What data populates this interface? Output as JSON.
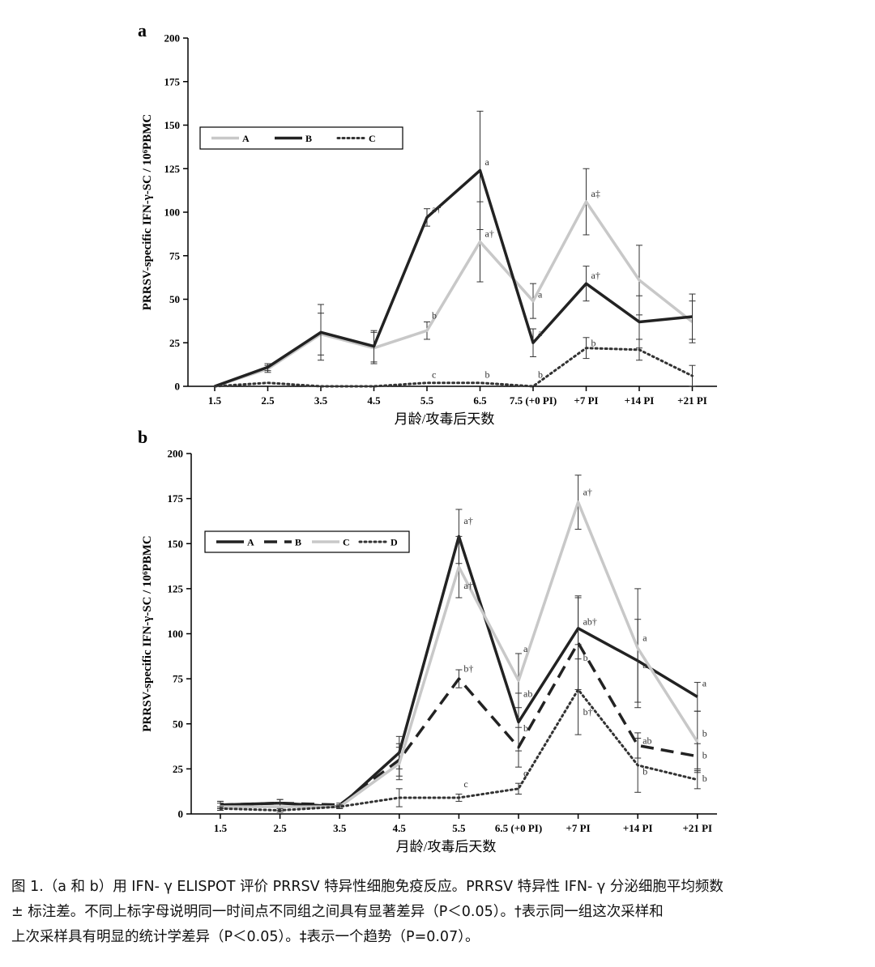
{
  "chart_data": [
    {
      "panel_label": "a",
      "type": "line",
      "ylabel": "PRRSV-specific IFN-γ-SC / 10⁶PBMC",
      "xlabel": "月龄/攻毒后天数",
      "ylim": [
        0,
        200
      ],
      "yticks": [
        "0",
        "25",
        "50",
        "75",
        "100",
        "125",
        "150",
        "175",
        "200"
      ],
      "categories": [
        "1.5",
        "2.5",
        "3.5",
        "4.5",
        "5.5",
        "6.5",
        "7.5 (+0 PI)",
        "+7 PI",
        "+14 PI",
        "+21 PI"
      ],
      "legend_placement": "top-left",
      "series": [
        {
          "name": "A",
          "style": "solid",
          "color": "#c8c8c8",
          "values": [
            0,
            10,
            30,
            22,
            32,
            83,
            49,
            106,
            61,
            37
          ],
          "errors": [
            0,
            2,
            12,
            9,
            5,
            23,
            10,
            19,
            20,
            12
          ]
        },
        {
          "name": "B",
          "style": "solid",
          "color": "#222222",
          "values": [
            0,
            11,
            31,
            23,
            97,
            124,
            25,
            59,
            37,
            40
          ],
          "errors": [
            0,
            2,
            16,
            9,
            5,
            34,
            8,
            10,
            15,
            13
          ]
        },
        {
          "name": "C",
          "style": "dotted",
          "color": "#333333",
          "values": [
            0,
            2,
            0,
            0,
            2,
            2,
            0,
            22,
            21,
            6
          ],
          "errors": [
            0,
            0,
            0,
            0,
            0,
            0,
            0,
            6,
            6,
            6
          ]
        }
      ],
      "annotations": [
        {
          "text": "a",
          "cat": 5,
          "value": 126
        },
        {
          "text": "a†",
          "cat": 4,
          "value": 99
        },
        {
          "text": "a†",
          "cat": 5,
          "value": 85
        },
        {
          "text": "b",
          "cat": 4,
          "value": 38
        },
        {
          "text": "c",
          "cat": 4,
          "value": 4
        },
        {
          "text": "b",
          "cat": 5,
          "value": 4
        },
        {
          "text": "a",
          "cat": 6,
          "value": 50
        },
        {
          "text": "a",
          "cat": 6,
          "value": 28
        },
        {
          "text": "b",
          "cat": 6,
          "value": 4
        },
        {
          "text": "a‡",
          "cat": 7,
          "value": 108
        },
        {
          "text": "a†",
          "cat": 7,
          "value": 61
        },
        {
          "text": "b",
          "cat": 7,
          "value": 22
        }
      ]
    },
    {
      "panel_label": "b",
      "type": "line",
      "ylabel": "PRRSV-specific IFN-γ-SC / 10⁶PBMC",
      "xlabel": "月龄/攻毒后天数",
      "ylim": [
        0,
        200
      ],
      "yticks": [
        "0",
        "25",
        "50",
        "75",
        "100",
        "125",
        "150",
        "175",
        "200"
      ],
      "categories": [
        "1.5",
        "2.5",
        "3.5",
        "4.5",
        "5.5",
        "6.5 (+0 PI)",
        "+7 PI",
        "+14 PI",
        "+21 PI"
      ],
      "legend_placement": "top-left",
      "series": [
        {
          "name": "A",
          "style": "solid",
          "color": "#222222",
          "values": [
            5,
            6,
            4,
            34,
            154,
            51,
            103,
            85,
            65
          ],
          "errors": [
            2,
            2,
            1,
            9,
            15,
            16,
            17,
            23,
            8
          ]
        },
        {
          "name": "B",
          "style": "dashed",
          "color": "#222222",
          "values": [
            5,
            6,
            5,
            30,
            75,
            37,
            95,
            38,
            32
          ],
          "errors": [
            2,
            2,
            1,
            9,
            5,
            11,
            26,
            7,
            7
          ]
        },
        {
          "name": "C",
          "style": "solid",
          "color": "#c8c8c8",
          "values": [
            4,
            4,
            4,
            28,
            137,
            74,
            173,
            92,
            40
          ],
          "errors": [
            2,
            2,
            1,
            9,
            17,
            15,
            15,
            33,
            17
          ]
        },
        {
          "name": "D",
          "style": "dotted",
          "color": "#333333",
          "values": [
            3,
            2,
            4,
            9,
            9,
            14,
            69,
            27,
            19
          ],
          "errors": [
            1,
            1,
            1,
            5,
            2,
            3,
            25,
            15,
            5
          ]
        }
      ],
      "annotations": [
        {
          "text": "a†",
          "cat": 4,
          "value": 160
        },
        {
          "text": "a†",
          "cat": 4,
          "value": 124
        },
        {
          "text": "b†",
          "cat": 4,
          "value": 78
        },
        {
          "text": "c",
          "cat": 4,
          "value": 14
        },
        {
          "text": "a",
          "cat": 5,
          "value": 89
        },
        {
          "text": "ab",
          "cat": 5,
          "value": 64
        },
        {
          "text": "b",
          "cat": 5,
          "value": 45
        },
        {
          "text": "c",
          "cat": 5,
          "value": 20
        },
        {
          "text": "a†",
          "cat": 6,
          "value": 176
        },
        {
          "text": "ab†",
          "cat": 6,
          "value": 104
        },
        {
          "text": "b",
          "cat": 6,
          "value": 84
        },
        {
          "text": "b†",
          "cat": 6,
          "value": 54
        },
        {
          "text": "a",
          "cat": 7,
          "value": 95
        },
        {
          "text": "a",
          "cat": 7,
          "value": 80
        },
        {
          "text": "ab",
          "cat": 7,
          "value": 38
        },
        {
          "text": "b",
          "cat": 7,
          "value": 21
        },
        {
          "text": "a",
          "cat": 8,
          "value": 70
        },
        {
          "text": "b",
          "cat": 8,
          "value": 42
        },
        {
          "text": "b",
          "cat": 8,
          "value": 30
        },
        {
          "text": "b",
          "cat": 8,
          "value": 17
        }
      ]
    }
  ],
  "caption": {
    "line1": "图 1.（a 和 b）用 IFN- γ ELISPOT 评价 PRRSV 特异性细胞免疫反应。PRRSV 特异性 IFN- γ 分泌细胞平均频数",
    "line2": "± 标注差。不同上标字母说明同一时间点不同组之间具有显著差异（P＜0.05）。†表示同一组这次采样和",
    "line3": "上次采样具有明显的统计学差异（P＜0.05）。‡表示一个趋势（P=0.07）。"
  }
}
